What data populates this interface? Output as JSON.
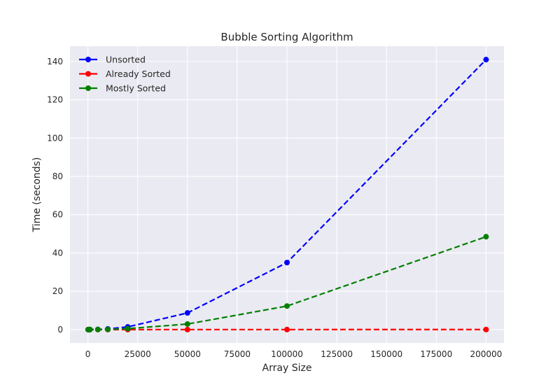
{
  "chart_data": {
    "type": "line",
    "title": "Bubble Sorting Algorithm",
    "xlabel": "Array Size",
    "ylabel": "Time (seconds)",
    "xlim": [
      -9000,
      209000
    ],
    "ylim": [
      -7,
      148
    ],
    "xticks": [
      0,
      25000,
      50000,
      75000,
      100000,
      125000,
      150000,
      175000,
      200000
    ],
    "yticks": [
      0,
      20,
      40,
      60,
      80,
      100,
      120,
      140
    ],
    "grid": true,
    "legend_position": "top-left",
    "x": [
      100,
      500,
      1000,
      5000,
      10000,
      20000,
      50000,
      100000,
      200000
    ],
    "series": [
      {
        "name": "Unsorted",
        "color": "#0000ff",
        "line_style": "dashed",
        "marker": "circle",
        "values": [
          0.0,
          0.01,
          0.04,
          0.1,
          0.35,
          1.4,
          8.7,
          35.0,
          141.0
        ]
      },
      {
        "name": "Already Sorted",
        "color": "#ff0000",
        "line_style": "dashed",
        "marker": "circle",
        "values": [
          0.0,
          0.0,
          0.0,
          0.0,
          0.0,
          0.0,
          0.01,
          0.02,
          0.04
        ]
      },
      {
        "name": "Mostly Sorted",
        "color": "#008000",
        "line_style": "dashed",
        "marker": "circle",
        "values": [
          0.0,
          0.0,
          0.01,
          0.05,
          0.12,
          0.5,
          2.9,
          12.3,
          48.5
        ]
      }
    ]
  }
}
